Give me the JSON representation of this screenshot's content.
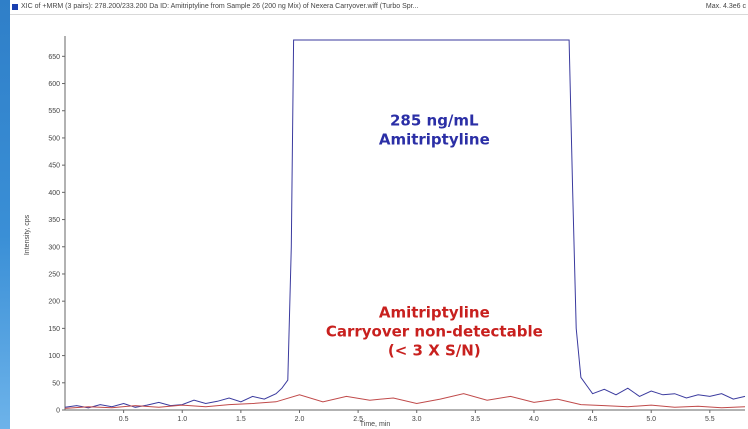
{
  "header": {
    "title": "XIC of +MRM (3 pairs): 278.200/233.200 Da ID: Amitriptyline from Sample 26 (200 ng Mix) of Nexera Carryover.wiff (Turbo Spr...",
    "max_label": "Max. 4.3e6 c"
  },
  "chart_data": {
    "type": "line",
    "xlabel": "Time, min",
    "ylabel": "Intensity, cps",
    "xlim": [
      0.0,
      5.8
    ],
    "ylim": [
      0,
      680
    ],
    "x_ticks": [
      "0.5",
      "1.0",
      "1.5",
      "2.0",
      "2.5",
      "3.0",
      "3.5",
      "4.0",
      "4.5",
      "5.0",
      "5.5"
    ],
    "y_ticks": [
      "0",
      "50",
      "100",
      "150",
      "200",
      "250",
      "300",
      "350",
      "400",
      "450",
      "500",
      "550",
      "600",
      "650"
    ],
    "series": [
      {
        "color": "#3a3a9e",
        "x": [
          0.0,
          0.1,
          0.2,
          0.3,
          0.4,
          0.5,
          0.6,
          0.7,
          0.8,
          0.9,
          1.0,
          1.1,
          1.2,
          1.3,
          1.4,
          1.5,
          1.6,
          1.7,
          1.8,
          1.85,
          1.9,
          1.93,
          1.95,
          4.3,
          4.33,
          4.36,
          4.4,
          4.45,
          4.5,
          4.6,
          4.7,
          4.8,
          4.9,
          5.0,
          5.1,
          5.2,
          5.3,
          5.4,
          5.5,
          5.6,
          5.7,
          5.8
        ],
        "y": [
          5,
          8,
          4,
          10,
          6,
          12,
          5,
          9,
          14,
          8,
          10,
          18,
          12,
          16,
          22,
          15,
          25,
          20,
          30,
          40,
          55,
          300,
          680,
          680,
          400,
          150,
          60,
          45,
          30,
          38,
          28,
          40,
          25,
          35,
          28,
          30,
          22,
          28,
          25,
          30,
          20,
          25
        ]
      },
      {
        "color": "#c04a4a",
        "x": [
          0.0,
          0.2,
          0.4,
          0.6,
          0.8,
          1.0,
          1.2,
          1.4,
          1.6,
          1.8,
          2.0,
          2.2,
          2.4,
          2.6,
          2.8,
          3.0,
          3.2,
          3.4,
          3.6,
          3.8,
          4.0,
          4.2,
          4.4,
          4.6,
          4.8,
          5.0,
          5.2,
          5.4,
          5.6,
          5.8
        ],
        "y": [
          3,
          6,
          4,
          8,
          5,
          9,
          6,
          10,
          12,
          15,
          28,
          15,
          25,
          18,
          22,
          12,
          20,
          30,
          18,
          25,
          14,
          20,
          10,
          8,
          6,
          9,
          5,
          7,
          4,
          6
        ]
      }
    ],
    "saturation_line": {
      "x": [
        1.95,
        4.3
      ],
      "y": 680,
      "color": "#c04a4a"
    },
    "annotations": [
      {
        "lines": [
          "285 ng/mL",
          "Amitriptyline"
        ],
        "color": "#2b2fa6",
        "x": 3.15,
        "y": 505
      },
      {
        "lines": [
          "Amitriptyline",
          "Carryover non-detectable",
          "(< 3 X S/N)"
        ],
        "color": "#c8201e",
        "x": 3.15,
        "y": 135
      }
    ]
  }
}
